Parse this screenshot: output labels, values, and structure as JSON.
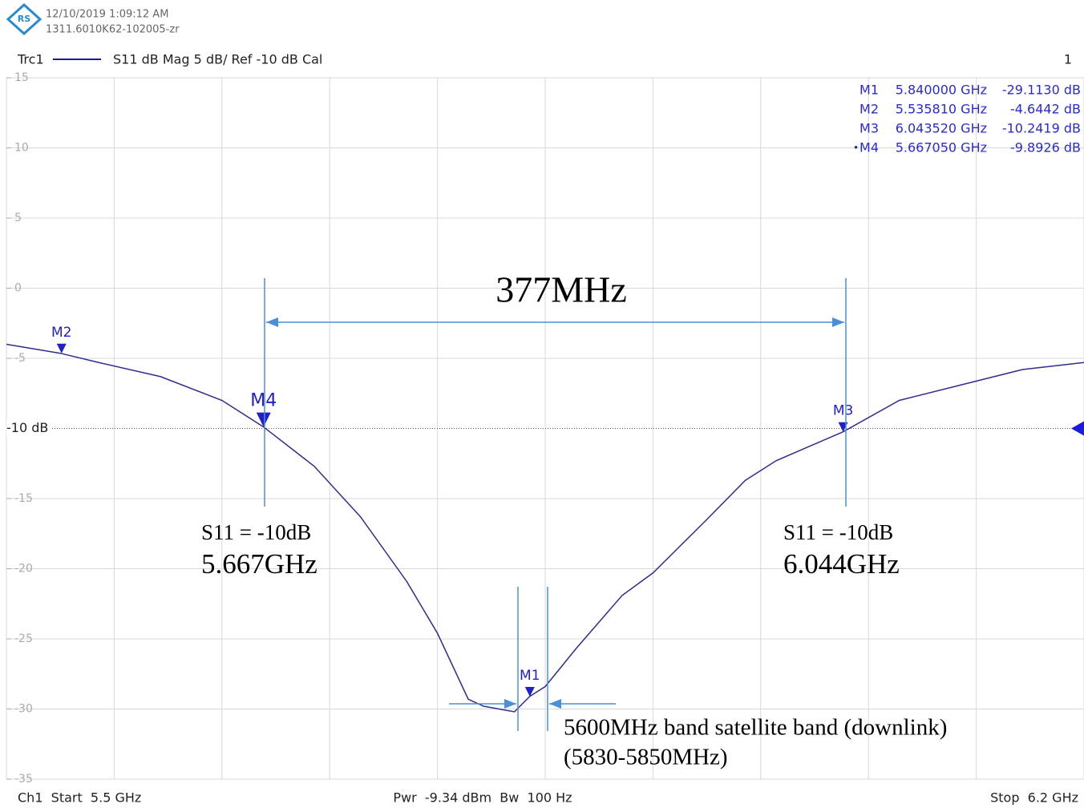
{
  "header": {
    "timestamp": "12/10/2019 1:09:12 AM",
    "device": "1311.6010K62-102005-zr",
    "window": "1"
  },
  "footer": {
    "start": "Ch1  Start  5.5 GHz",
    "power": "Pwr  -9.34 dBm  Bw  100 Hz",
    "stop": "Stop  6.2 GHz"
  },
  "chart_data": {
    "type": "line",
    "title": "S11  dB Mag  5 dB/ Ref -10 dB  Cal",
    "xlim": [
      5.5,
      6.2
    ],
    "xticks": [
      5.5,
      5.57,
      5.64,
      5.71,
      5.78,
      5.85,
      5.92,
      5.99,
      6.06,
      6.13,
      6.2
    ],
    "ylim": [
      -35,
      15
    ],
    "yticks": [
      15,
      10,
      5,
      0,
      -5,
      {
        "value": -10,
        "label": "-10 dB"
      },
      -15,
      -20,
      -25,
      -30,
      -35
    ],
    "grid": true,
    "series": [
      {
        "name": "Trc1",
        "color": "#2e2e8c",
        "x": [
          5.5,
          5.535,
          5.56,
          5.6,
          5.64,
          5.667,
          5.7,
          5.73,
          5.76,
          5.78,
          5.8,
          5.81,
          5.82,
          5.83,
          5.84,
          5.85,
          5.87,
          5.9,
          5.92,
          5.954,
          5.98,
          6.0,
          6.0435,
          6.08,
          6.12,
          6.16,
          6.2
        ],
        "values": [
          -4.0,
          -4.64,
          -5.3,
          -6.3,
          -8.0,
          -9.89,
          -12.7,
          -16.3,
          -20.9,
          -24.6,
          -29.3,
          -29.8,
          -30.0,
          -30.2,
          -29.1,
          -28.4,
          -25.7,
          -21.9,
          -20.3,
          -16.6,
          -13.7,
          -12.3,
          -10.24,
          -8.0,
          -6.9,
          -5.8,
          -5.3
        ]
      }
    ],
    "marker_color": "#2020c8",
    "markers": [
      {
        "name": "M1",
        "x": 5.84,
        "y": -29.113,
        "x_label": "5.840000 GHz",
        "y_label": "-29.1130 dB"
      },
      {
        "name": "M2",
        "x": 5.53581,
        "y": -4.6442,
        "x_label": "5.535810 GHz",
        "y_label": "-4.6442 dB"
      },
      {
        "name": "M3",
        "x": 6.04352,
        "y": -10.2419,
        "x_label": "6.043520 GHz",
        "y_label": "-10.2419 dB"
      },
      {
        "name": "M4",
        "x": 5.66705,
        "y": -9.8926,
        "x_label": "5.667050 GHz",
        "y_label": "-9.8926 dB"
      }
    ],
    "active_marker": "M4",
    "annotations": [
      "377MHz",
      "S11 = -10dB",
      "5.667GHz",
      "S11 = -10dB",
      "6.044GHz",
      "5600MHz band satellite band (downlink)",
      "(5830-5850MHz)"
    ]
  }
}
